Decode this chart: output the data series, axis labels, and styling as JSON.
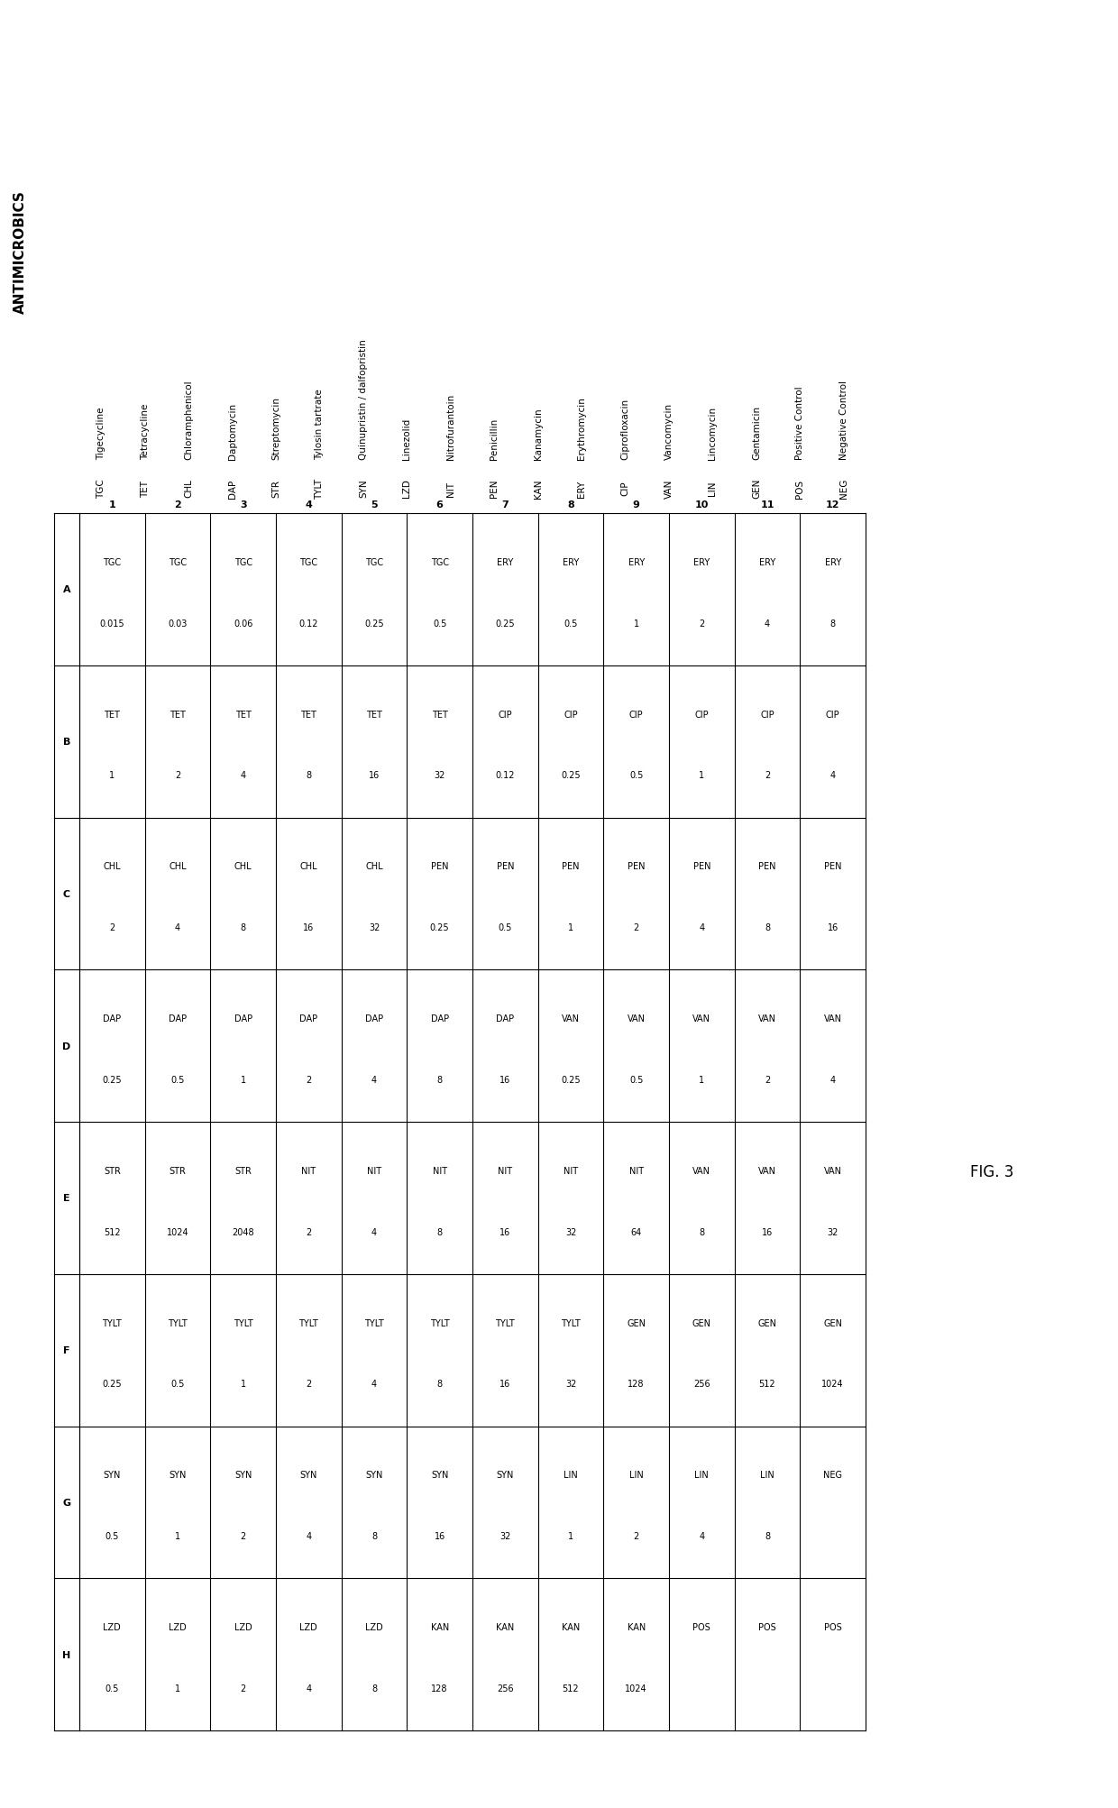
{
  "title": "ANTIMICROBICS",
  "fig3_label": "FIG. 3",
  "antimicrobics_full": [
    "Tigecycline",
    "Tetracycline",
    "Chloramphenicol",
    "Daptomycin",
    "Streptomycin",
    "Tylosin tartrate",
    "Quinupristin / dalfopristin",
    "Linezolid",
    "Nitrofurantoin",
    "Penicillin",
    "Kanamycin",
    "Erythromycin",
    "Ciprofloxacin",
    "Vancomycin",
    "Lincomycin",
    "Gentamicin",
    "Positive Control",
    "Negative Control"
  ],
  "antimicrobics_abbr": [
    "TGC",
    "TET",
    "CHL",
    "DAP",
    "STR",
    "TYLT",
    "SYN",
    "LZD",
    "NIT",
    "PEN",
    "KAN",
    "ERY",
    "CIP",
    "VAN",
    "LIN",
    "GEN",
    "POS",
    "NEG"
  ],
  "row_labels": [
    "A",
    "B",
    "C",
    "D",
    "E",
    "F",
    "G",
    "H"
  ],
  "col_labels": [
    "1",
    "2",
    "3",
    "4",
    "5",
    "6",
    "7",
    "8",
    "9",
    "10",
    "11",
    "12"
  ],
  "table_data": [
    [
      [
        "TGC",
        "0.015"
      ],
      [
        "TGC",
        "0.03"
      ],
      [
        "TGC",
        "0.06"
      ],
      [
        "TGC",
        "0.12"
      ],
      [
        "TGC",
        "0.25"
      ],
      [
        "TGC",
        "0.5"
      ],
      [
        "ERY",
        "0.25"
      ],
      [
        "ERY",
        "0.5"
      ],
      [
        "ERY",
        "1"
      ],
      [
        "ERY",
        "2"
      ],
      [
        "ERY",
        "4"
      ],
      [
        "ERY",
        "8"
      ]
    ],
    [
      [
        "TET",
        "1"
      ],
      [
        "TET",
        "2"
      ],
      [
        "TET",
        "4"
      ],
      [
        "TET",
        "8"
      ],
      [
        "TET",
        "16"
      ],
      [
        "TET",
        "32"
      ],
      [
        "CIP",
        "0.12"
      ],
      [
        "CIP",
        "0.25"
      ],
      [
        "CIP",
        "0.5"
      ],
      [
        "CIP",
        "1"
      ],
      [
        "CIP",
        "2"
      ],
      [
        "CIP",
        "4"
      ]
    ],
    [
      [
        "CHL",
        "2"
      ],
      [
        "CHL",
        "4"
      ],
      [
        "CHL",
        "8"
      ],
      [
        "CHL",
        "16"
      ],
      [
        "CHL",
        "32"
      ],
      [
        "PEN",
        "0.25"
      ],
      [
        "PEN",
        "0.5"
      ],
      [
        "PEN",
        "1"
      ],
      [
        "PEN",
        "2"
      ],
      [
        "PEN",
        "4"
      ],
      [
        "PEN",
        "8"
      ],
      [
        "PEN",
        "16"
      ]
    ],
    [
      [
        "DAP",
        "0.25"
      ],
      [
        "DAP",
        "0.5"
      ],
      [
        "DAP",
        "1"
      ],
      [
        "DAP",
        "2"
      ],
      [
        "DAP",
        "4"
      ],
      [
        "DAP",
        "8"
      ],
      [
        "DAP",
        "16"
      ],
      [
        "VAN",
        "0.25"
      ],
      [
        "VAN",
        "0.5"
      ],
      [
        "VAN",
        "1"
      ],
      [
        "VAN",
        "2"
      ],
      [
        "VAN",
        "4"
      ]
    ],
    [
      [
        "STR",
        "512"
      ],
      [
        "STR",
        "1024"
      ],
      [
        "STR",
        "2048"
      ],
      [
        "NIT",
        "2"
      ],
      [
        "NIT",
        "4"
      ],
      [
        "NIT",
        "8"
      ],
      [
        "NIT",
        "16"
      ],
      [
        "NIT",
        "32"
      ],
      [
        "NIT",
        "64"
      ],
      [
        "VAN",
        "8"
      ],
      [
        "VAN",
        "16"
      ],
      [
        "VAN",
        "32"
      ]
    ],
    [
      [
        "TYLT",
        "0.25"
      ],
      [
        "TYLT",
        "0.5"
      ],
      [
        "TYLT",
        "1"
      ],
      [
        "TYLT",
        "2"
      ],
      [
        "TYLT",
        "4"
      ],
      [
        "TYLT",
        "8"
      ],
      [
        "TYLT",
        "16"
      ],
      [
        "TYLT",
        "32"
      ],
      [
        "GEN",
        "128"
      ],
      [
        "GEN",
        "256"
      ],
      [
        "GEN",
        "512"
      ],
      [
        "GEN",
        "1024"
      ]
    ],
    [
      [
        "SYN",
        "0.5"
      ],
      [
        "SYN",
        "1"
      ],
      [
        "SYN",
        "2"
      ],
      [
        "SYN",
        "4"
      ],
      [
        "SYN",
        "8"
      ],
      [
        "SYN",
        "16"
      ],
      [
        "SYN",
        "32"
      ],
      [
        "LIN",
        "1"
      ],
      [
        "LIN",
        "2"
      ],
      [
        "LIN",
        "4"
      ],
      [
        "LIN",
        "8"
      ],
      [
        "NEG",
        ""
      ]
    ],
    [
      [
        "LZD",
        "0.5"
      ],
      [
        "LZD",
        "1"
      ],
      [
        "LZD",
        "2"
      ],
      [
        "LZD",
        "4"
      ],
      [
        "LZD",
        "8"
      ],
      [
        "KAN",
        "128"
      ],
      [
        "KAN",
        "256"
      ],
      [
        "KAN",
        "512"
      ],
      [
        "KAN",
        "1024"
      ],
      [
        "POS",
        ""
      ],
      [
        "POS",
        ""
      ],
      [
        "POS",
        ""
      ]
    ]
  ],
  "background_color": "#ffffff",
  "text_color": "#000000",
  "grid_color": "#000000",
  "font_size_title": 11,
  "font_size_abbr": 7.5,
  "font_size_full": 7.5,
  "font_size_cell_label": 7,
  "font_size_cell_value": 7,
  "font_size_rowcol": 8,
  "font_size_fig": 12
}
